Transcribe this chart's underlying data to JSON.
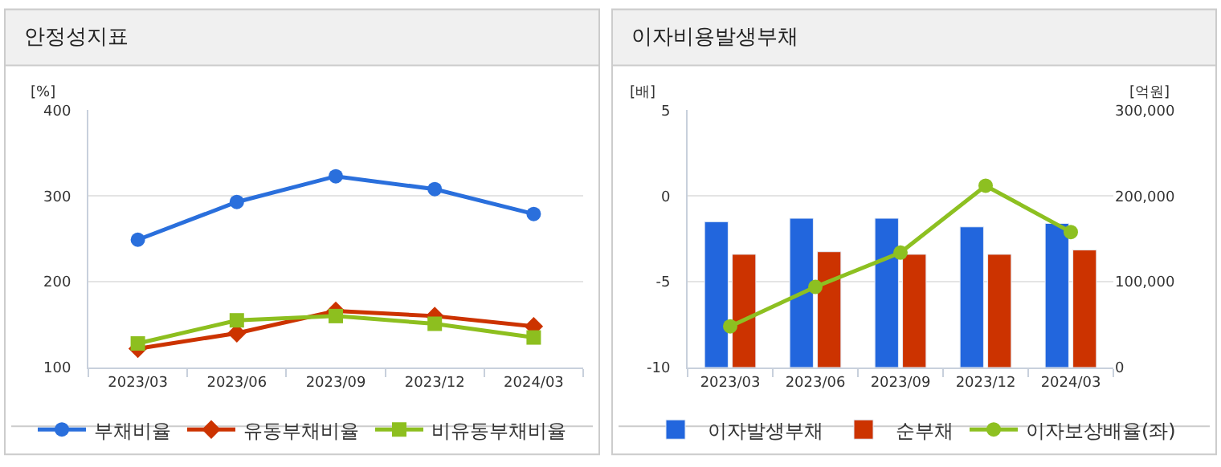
{
  "chart_data": [
    {
      "type": "line",
      "title": "안정성지표",
      "ylabel": "[%]",
      "categories": [
        "2023/03",
        "2023/06",
        "2023/09",
        "2023/12",
        "2024/03"
      ],
      "ylim": [
        100,
        400
      ],
      "yticks": [
        100,
        200,
        300,
        400
      ],
      "grid": "y",
      "legend": "bottom",
      "line_style": "solid",
      "series": [
        {
          "name": "부채비율",
          "color": "#2a6fdc",
          "marker": "circle",
          "values": [
            249,
            293,
            323,
            308,
            279
          ]
        },
        {
          "name": "유동부채비율",
          "color": "#cc3300",
          "marker": "diamond",
          "values": [
            122,
            140,
            166,
            160,
            148
          ]
        },
        {
          "name": "비유동부채비율",
          "color": "#8dbf1f",
          "marker": "square",
          "values": [
            128,
            155,
            160,
            151,
            135
          ]
        }
      ]
    },
    {
      "type": "bar",
      "title": "이자비용발생부채",
      "ylabel": "[배]",
      "y2label": "[억원]",
      "categories": [
        "2023/03",
        "2023/06",
        "2023/09",
        "2023/12",
        "2024/03"
      ],
      "ylim": [
        -10,
        5
      ],
      "yticks": [
        -10,
        -5,
        0,
        5
      ],
      "y2lim": [
        0,
        300000
      ],
      "y2ticks": [
        {
          "value": 0,
          "label": "0"
        },
        {
          "value": 100000,
          "label": "100,000"
        },
        {
          "value": 200000,
          "label": "200,000"
        },
        {
          "value": 300000,
          "label": "300,000"
        }
      ],
      "grid": "y",
      "legend": "bottom",
      "series": [
        {
          "name": "이자발생부채",
          "color": "#2266dd",
          "axis": "y2",
          "values": [
            170000,
            174000,
            174000,
            164000,
            168000
          ]
        },
        {
          "name": "순부채",
          "color": "#cc3300",
          "axis": "y2",
          "values": [
            132000,
            135000,
            132000,
            132000,
            137000
          ]
        },
        {
          "name": "이자보상배율(좌)",
          "type": "line",
          "color": "#8dc021",
          "marker": "circle",
          "axis": "y",
          "values": [
            -7.6,
            -5.3,
            -3.3,
            0.6,
            -2.1
          ]
        }
      ]
    }
  ]
}
